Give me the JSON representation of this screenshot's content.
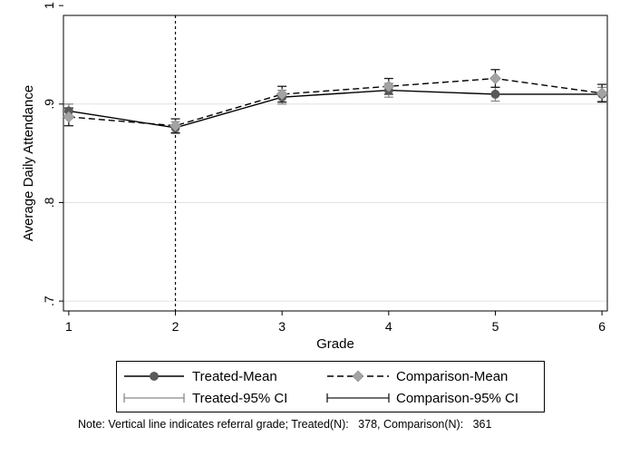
{
  "chart_data": {
    "type": "line",
    "x": [
      1,
      2,
      3,
      4,
      5,
      6
    ],
    "xlabel": "Grade",
    "ylabel": "Average Daily Attendance",
    "xlim": [
      0.95,
      6.05
    ],
    "ylim": [
      0.69,
      0.99
    ],
    "xticks": [
      "1",
      "2",
      "3",
      "4",
      "5",
      "6"
    ],
    "yticks": [
      {
        "value": 0.7,
        "label": ".7"
      },
      {
        "value": 0.8,
        "label": ".8"
      },
      {
        "value": 0.9,
        "label": ".9"
      },
      {
        "value": 1.0,
        "label": "1"
      }
    ],
    "grid": "horizontal",
    "referral_line_x": 2,
    "series": [
      {
        "name": "Treated-Mean",
        "values": [
          0.893,
          0.876,
          0.907,
          0.914,
          0.91,
          0.91
        ],
        "ci_lower": [
          0.886,
          0.87,
          0.9,
          0.907,
          0.903,
          0.903
        ],
        "ci_upper": [
          0.9,
          0.882,
          0.914,
          0.921,
          0.917,
          0.917
        ],
        "line_color": "#000000",
        "marker_color": "#5a5a5a",
        "marker": "circle",
        "dash": "solid"
      },
      {
        "name": "Comparison-Mean",
        "values": [
          0.887,
          0.878,
          0.91,
          0.918,
          0.926,
          0.911
        ],
        "ci_lower": [
          0.878,
          0.871,
          0.902,
          0.91,
          0.917,
          0.902
        ],
        "ci_upper": [
          0.896,
          0.885,
          0.918,
          0.926,
          0.935,
          0.92
        ],
        "line_color": "#000000",
        "marker_color": "#a3a3a3",
        "marker": "diamond",
        "dash": "dashed"
      }
    ],
    "legend": {
      "position": "bottom",
      "entries": [
        "Treated-Mean",
        "Comparison-Mean",
        "Treated-95% CI",
        "Comparison-95% CI"
      ],
      "ci_colors": {
        "Treated-95% CI": "#8a8a8a",
        "Comparison-95% CI": "#1a1a1a"
      }
    }
  },
  "note": "Note: Vertical line indicates referral grade; Treated(N):   378, Comparison(N):   361"
}
